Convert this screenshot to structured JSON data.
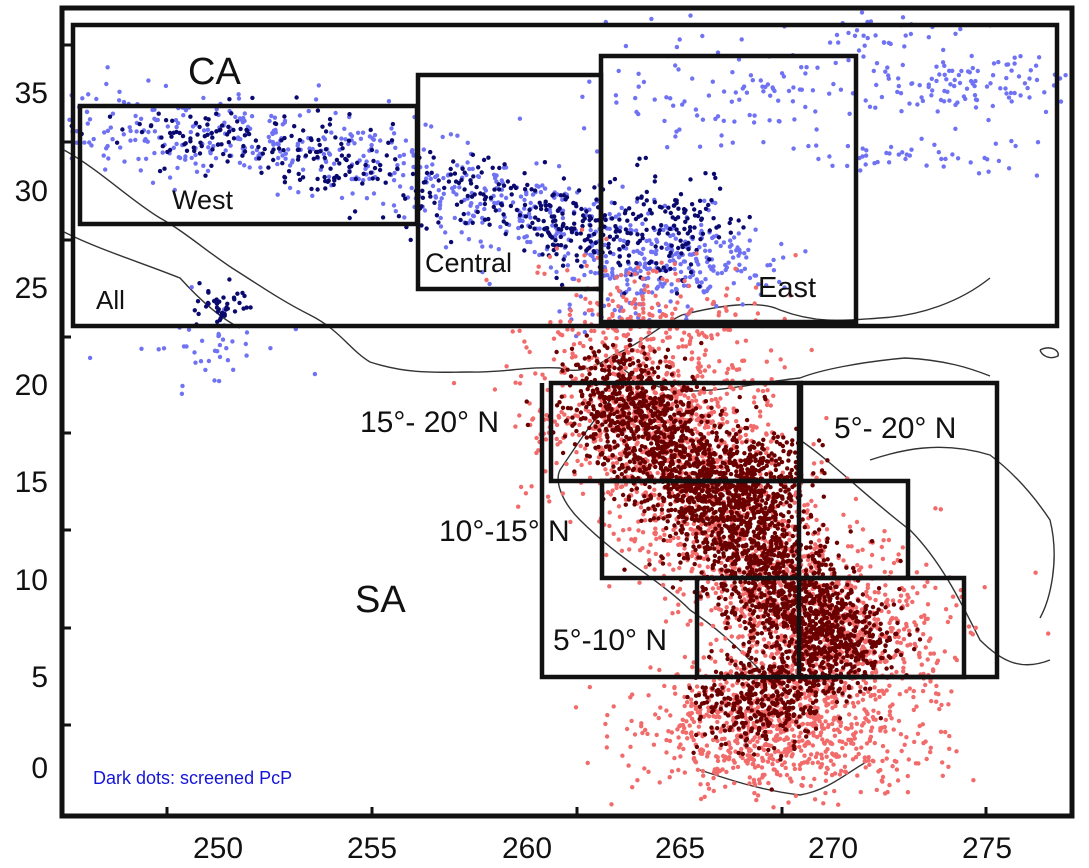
{
  "note": "Dark dots: screened PcP",
  "colors": {
    "ca_light": "#6f72f2",
    "ca_dark": "#0a0a6e",
    "sa_light": "#f26b6b",
    "sa_dark": "#6b0000",
    "coast": "#333333",
    "frame": "#111111"
  },
  "axes": {
    "x_ticks": [
      "250",
      "255",
      "260",
      "265",
      "270",
      "275"
    ],
    "y_ticks": [
      "0",
      "5",
      "10",
      "15",
      "20",
      "25",
      "30",
      "35"
    ]
  },
  "regions": {
    "ca_label": "CA",
    "sa_label": "SA",
    "west": "West",
    "central": "Central",
    "east": "East",
    "all": "All",
    "sa_15_20": "15°- 20° N",
    "sa_10_15": "10°-15° N",
    "sa_5_10": "5°-10° N",
    "sa_5_20": "5°- 20° N"
  }
}
